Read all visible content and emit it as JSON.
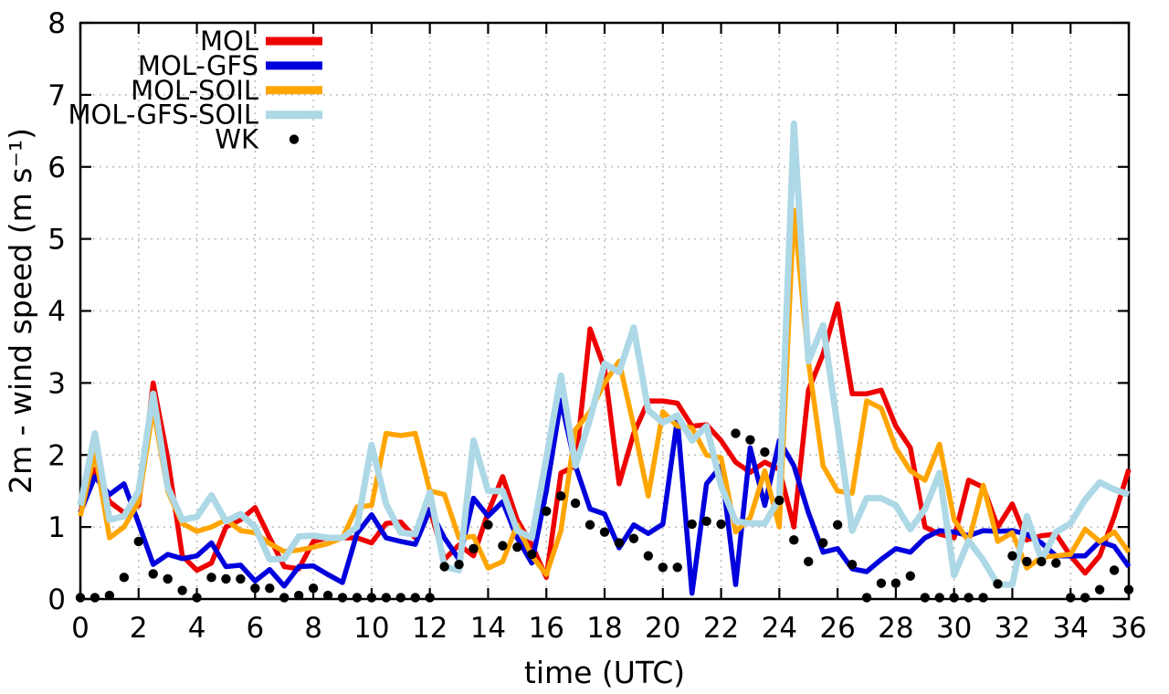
{
  "chart_data": {
    "type": "line",
    "title": "",
    "xlabel": "time (UTC)",
    "ylabel": "2m - wind speed  (m s⁻¹)",
    "xlim": [
      0,
      36
    ],
    "ylim": [
      0,
      8
    ],
    "xticks": [
      0,
      2,
      4,
      6,
      8,
      10,
      12,
      14,
      16,
      18,
      20,
      22,
      24,
      26,
      28,
      30,
      32,
      34,
      36
    ],
    "yticks": [
      0,
      1,
      2,
      3,
      4,
      5,
      6,
      7,
      8
    ],
    "grid": true,
    "grid_color": "#bbbbbb",
    "legend_position": "top-left-inside",
    "x_step_hours": 0.5,
    "x": [
      0,
      0.5,
      1,
      1.5,
      2,
      2.5,
      3,
      3.5,
      4,
      4.5,
      5,
      5.5,
      6,
      6.5,
      7,
      7.5,
      8,
      8.5,
      9,
      9.5,
      10,
      10.5,
      11,
      11.5,
      12,
      12.5,
      13,
      13.5,
      14,
      14.5,
      15,
      15.5,
      16,
      16.5,
      17,
      17.5,
      18,
      18.5,
      19,
      19.5,
      20,
      20.5,
      21,
      21.5,
      22,
      22.5,
      23,
      23.5,
      24,
      24.5,
      25,
      25.5,
      26,
      26.5,
      27,
      27.5,
      28,
      28.5,
      29,
      29.5,
      30,
      30.5,
      31,
      31.5,
      32,
      32.5,
      33,
      33.5,
      34,
      34.5,
      35,
      35.5,
      36
    ],
    "series": [
      {
        "name": "MOL",
        "color": "#ee0000",
        "style": "line",
        "values": [
          1.2,
          1.8,
          1.35,
          1.2,
          1.3,
          3.0,
          1.95,
          0.6,
          0.4,
          0.5,
          1.0,
          1.1,
          1.27,
          0.85,
          0.45,
          0.42,
          0.8,
          0.85,
          0.85,
          0.85,
          0.78,
          1.05,
          1.07,
          0.85,
          1.25,
          0.55,
          0.75,
          0.6,
          1.2,
          1.7,
          1.1,
          0.75,
          0.3,
          1.75,
          1.85,
          3.75,
          3.2,
          1.6,
          2.3,
          2.75,
          2.75,
          2.72,
          2.4,
          2.42,
          2.2,
          1.9,
          1.76,
          1.9,
          1.8,
          1.0,
          2.9,
          3.4,
          4.1,
          2.85,
          2.85,
          2.9,
          2.4,
          2.1,
          1.0,
          0.9,
          0.85,
          1.65,
          1.55,
          1.0,
          1.32,
          0.82,
          0.88,
          0.9,
          0.6,
          0.36,
          0.6,
          1.15,
          1.8
        ]
      },
      {
        "name": "MOL-GFS",
        "color": "#0000dd",
        "style": "line",
        "values": [
          1.2,
          1.7,
          1.45,
          1.6,
          1.05,
          0.48,
          0.62,
          0.56,
          0.6,
          0.78,
          0.45,
          0.47,
          0.25,
          0.41,
          0.18,
          0.45,
          0.46,
          0.34,
          0.23,
          0.91,
          1.17,
          0.85,
          0.8,
          0.76,
          1.24,
          0.85,
          0.55,
          1.4,
          1.15,
          1.35,
          0.85,
          0.5,
          1.5,
          2.76,
          1.85,
          1.25,
          1.18,
          0.71,
          1.03,
          0.91,
          1.04,
          2.5,
          0.08,
          1.6,
          1.85,
          0.2,
          2.1,
          1.3,
          2.2,
          1.85,
          1.2,
          0.65,
          0.7,
          0.42,
          0.38,
          0.55,
          0.7,
          0.65,
          0.85,
          0.95,
          0.93,
          0.88,
          0.95,
          0.94,
          0.95,
          0.9,
          0.78,
          0.6,
          0.6,
          0.6,
          0.8,
          0.73,
          0.45
        ]
      },
      {
        "name": "MOL-SOIL",
        "color": "#ffa500",
        "style": "line",
        "values": [
          1.15,
          2.05,
          0.85,
          1.0,
          1.35,
          2.65,
          1.5,
          1.05,
          0.94,
          1.0,
          1.1,
          0.95,
          0.92,
          0.77,
          0.66,
          0.68,
          0.72,
          0.77,
          0.85,
          1.28,
          1.3,
          2.3,
          2.27,
          2.3,
          1.5,
          1.45,
          0.85,
          0.87,
          0.43,
          0.52,
          1.03,
          0.6,
          0.34,
          0.95,
          2.35,
          2.6,
          3.0,
          3.3,
          2.4,
          1.43,
          2.6,
          2.4,
          2.38,
          2.0,
          1.96,
          0.93,
          1.13,
          1.78,
          1.0,
          5.4,
          3.3,
          1.85,
          1.5,
          1.47,
          2.75,
          2.65,
          2.1,
          1.78,
          1.65,
          2.15,
          1.1,
          0.8,
          1.58,
          0.8,
          0.92,
          0.43,
          0.58,
          0.6,
          0.62,
          0.97,
          0.8,
          0.93,
          0.65
        ]
      },
      {
        "name": "MOL-GFS-SOIL",
        "color": "#add8e6",
        "style": "line",
        "values": [
          1.3,
          2.3,
          1.1,
          1.15,
          1.5,
          2.85,
          1.55,
          1.1,
          1.14,
          1.44,
          1.08,
          1.18,
          1.0,
          0.55,
          0.56,
          0.87,
          0.88,
          0.85,
          0.85,
          1.0,
          2.14,
          1.32,
          0.92,
          0.9,
          1.48,
          0.45,
          0.4,
          2.2,
          1.5,
          1.5,
          0.95,
          0.85,
          1.95,
          3.1,
          1.85,
          2.5,
          3.27,
          3.15,
          3.77,
          2.62,
          2.45,
          2.55,
          2.2,
          2.4,
          1.57,
          1.08,
          1.05,
          1.05,
          1.4,
          6.6,
          3.3,
          3.8,
          2.4,
          0.95,
          1.4,
          1.4,
          1.3,
          0.97,
          1.25,
          1.75,
          0.33,
          0.81,
          0.54,
          0.2,
          0.2,
          1.15,
          0.55,
          0.93,
          1.05,
          1.38,
          1.62,
          1.52,
          1.45
        ]
      },
      {
        "name": "WK",
        "color": "#000000",
        "style": "points",
        "values": [
          0.02,
          0.02,
          0.05,
          0.3,
          0.8,
          0.35,
          0.28,
          0.12,
          0.02,
          0.3,
          0.28,
          0.28,
          0.15,
          0.15,
          0.02,
          0.05,
          0.15,
          0.05,
          0.02,
          0.02,
          0.02,
          0.02,
          0.02,
          0.02,
          0.02,
          0.45,
          0.48,
          0.7,
          1.03,
          0.74,
          0.72,
          0.62,
          1.22,
          1.43,
          1.33,
          1.03,
          0.93,
          0.78,
          0.84,
          0.6,
          0.44,
          0.44,
          1.04,
          1.08,
          1.04,
          2.3,
          2.21,
          2.04,
          1.37,
          0.82,
          0.52,
          0.78,
          1.03,
          0.48,
          0.02,
          0.22,
          0.22,
          0.32,
          0.02,
          0.02,
          0.02,
          0.02,
          0.02,
          0.21,
          0.6,
          0.52,
          0.52,
          0.5,
          0.02,
          0.02,
          0.13,
          0.4,
          0.13
        ]
      }
    ]
  }
}
